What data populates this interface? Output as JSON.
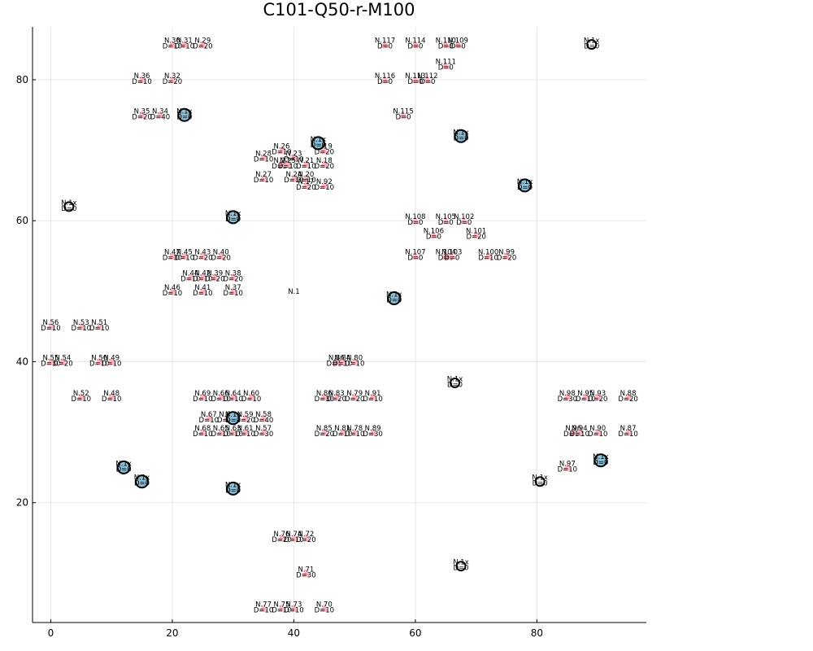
{
  "chart_data": {
    "type": "scatter",
    "title": "C101-Q50-r-M100",
    "xlabel": "",
    "ylabel": "",
    "xlim": [
      -3,
      98
    ],
    "ylim": [
      3,
      87.5
    ],
    "xticks": [
      0,
      20,
      40,
      60,
      80
    ],
    "yticks": [
      20,
      40,
      60,
      80
    ],
    "grid": true,
    "legend": "none",
    "colors": {
      "customer": "#ffb6c1",
      "facility_filled": "#8fbfd6",
      "facility_stroke": "#000000",
      "text": "#000000"
    },
    "facilities_filled": [
      {
        "label": "N.1x",
        "demand": "D=0",
        "x": 22,
        "y": 75
      },
      {
        "label": "N.1x",
        "demand": "D=0",
        "x": 44,
        "y": 71
      },
      {
        "label": "N.1x",
        "demand": "D=0",
        "x": 67.5,
        "y": 72
      },
      {
        "label": "N.1x",
        "demand": "D=0",
        "x": 78,
        "y": 65
      },
      {
        "label": "N.1x",
        "demand": "D=0",
        "x": 30,
        "y": 60.5
      },
      {
        "label": "N.1x",
        "demand": "D=0",
        "x": 56.5,
        "y": 49
      },
      {
        "label": "N.1x",
        "demand": "D=0",
        "x": 30,
        "y": 32
      },
      {
        "label": "N.1x",
        "demand": "D=0",
        "x": 12,
        "y": 25
      },
      {
        "label": "N.1x",
        "demand": "D=0",
        "x": 15,
        "y": 23
      },
      {
        "label": "N.1x",
        "demand": "D=0",
        "x": 30,
        "y": 22
      },
      {
        "label": "N.1x",
        "demand": "D=0",
        "x": 90.5,
        "y": 26
      }
    ],
    "facilities_open": [
      {
        "label": "N.1x",
        "demand": "D=0",
        "x": 89,
        "y": 85
      },
      {
        "label": "N.1x",
        "demand": "D=0",
        "x": 3,
        "y": 62
      },
      {
        "label": "N.1x",
        "demand": "D=0",
        "x": 66.5,
        "y": 37
      },
      {
        "label": "N.1x",
        "demand": "D=0",
        "x": 80.5,
        "y": 23
      },
      {
        "label": "N.1x",
        "demand": "D=0",
        "x": 67.5,
        "y": 11
      }
    ],
    "depot": {
      "label": "N.1",
      "x": 40,
      "y": 50
    },
    "customers": [
      {
        "label": "N.30",
        "demand": "D=10",
        "x": 20,
        "y": 85
      },
      {
        "label": "N.31",
        "demand": "D=10",
        "x": 22,
        "y": 85
      },
      {
        "label": "N.29",
        "demand": "D=20",
        "x": 25,
        "y": 85
      },
      {
        "label": "N.36",
        "demand": "D=10",
        "x": 15,
        "y": 80
      },
      {
        "label": "N.32",
        "demand": "D=20",
        "x": 20,
        "y": 80
      },
      {
        "label": "N.35",
        "demand": "D=20",
        "x": 15,
        "y": 75
      },
      {
        "label": "N.34",
        "demand": "D=40",
        "x": 18,
        "y": 75
      },
      {
        "label": "N.26",
        "demand": "D=10",
        "x": 38,
        "y": 70
      },
      {
        "label": "N.19",
        "demand": "D=20",
        "x": 45,
        "y": 70
      },
      {
        "label": "N.23",
        "demand": "D=10",
        "x": 40,
        "y": 69
      },
      {
        "label": "N.28",
        "demand": "D=10",
        "x": 35,
        "y": 69
      },
      {
        "label": "N.22",
        "demand": "D=20",
        "x": 38,
        "y": 68
      },
      {
        "label": "N.25",
        "demand": "D=10",
        "x": 39,
        "y": 68
      },
      {
        "label": "N.21",
        "demand": "D=10",
        "x": 42,
        "y": 68
      },
      {
        "label": "N.18",
        "demand": "D=20",
        "x": 45,
        "y": 68
      },
      {
        "label": "N.27",
        "demand": "D=10",
        "x": 35,
        "y": 66
      },
      {
        "label": "N.24",
        "demand": "D=10",
        "x": 40,
        "y": 66
      },
      {
        "label": "N.20",
        "demand": "D=10",
        "x": 42,
        "y": 66
      },
      {
        "label": "N.17",
        "demand": "D=20",
        "x": 42,
        "y": 65
      },
      {
        "label": "N.92",
        "demand": "D=10",
        "x": 45,
        "y": 65
      },
      {
        "label": "N.117",
        "demand": "D=0",
        "x": 55,
        "y": 85
      },
      {
        "label": "N.114",
        "demand": "D=0",
        "x": 60,
        "y": 85
      },
      {
        "label": "N.110",
        "demand": "D=0",
        "x": 65,
        "y": 85
      },
      {
        "label": "N.109",
        "demand": "D=0",
        "x": 67,
        "y": 85
      },
      {
        "label": "N.111",
        "demand": "D=0",
        "x": 65,
        "y": 82
      },
      {
        "label": "N.116",
        "demand": "D=0",
        "x": 55,
        "y": 80
      },
      {
        "label": "N.113",
        "demand": "D=0",
        "x": 60,
        "y": 80
      },
      {
        "label": "N.112",
        "demand": "D=0",
        "x": 62,
        "y": 80
      },
      {
        "label": "N.115",
        "demand": "D=0",
        "x": 58,
        "y": 75
      },
      {
        "label": "N.108",
        "demand": "D=0",
        "x": 60,
        "y": 60
      },
      {
        "label": "N.105",
        "demand": "D=0",
        "x": 65,
        "y": 60
      },
      {
        "label": "N.102",
        "demand": "D=0",
        "x": 68,
        "y": 60
      },
      {
        "label": "N.106",
        "demand": "D=0",
        "x": 63,
        "y": 58
      },
      {
        "label": "N.101",
        "demand": "D=20",
        "x": 70,
        "y": 58
      },
      {
        "label": "N.107",
        "demand": "D=0",
        "x": 60,
        "y": 55
      },
      {
        "label": "N.104",
        "demand": "D=0",
        "x": 65,
        "y": 55
      },
      {
        "label": "N.103",
        "demand": "D=0",
        "x": 66,
        "y": 55
      },
      {
        "label": "N.100",
        "demand": "D=10",
        "x": 72,
        "y": 55
      },
      {
        "label": "N.99",
        "demand": "D=20",
        "x": 75,
        "y": 55
      },
      {
        "label": "N.47",
        "demand": "D=30",
        "x": 20,
        "y": 55
      },
      {
        "label": "N.45",
        "demand": "D=10",
        "x": 22,
        "y": 55
      },
      {
        "label": "N.43",
        "demand": "D=20",
        "x": 25,
        "y": 55
      },
      {
        "label": "N.40",
        "demand": "D=20",
        "x": 28,
        "y": 55
      },
      {
        "label": "N.44",
        "demand": "D=10",
        "x": 23,
        "y": 52
      },
      {
        "label": "N.42",
        "demand": "D=10",
        "x": 25,
        "y": 52
      },
      {
        "label": "N.39",
        "demand": "D=20",
        "x": 27,
        "y": 52
      },
      {
        "label": "N.38",
        "demand": "D=20",
        "x": 30,
        "y": 52
      },
      {
        "label": "N.46",
        "demand": "D=10",
        "x": 20,
        "y": 50
      },
      {
        "label": "N.41",
        "demand": "D=10",
        "x": 25,
        "y": 50
      },
      {
        "label": "N.37",
        "demand": "D=10",
        "x": 30,
        "y": 50
      },
      {
        "label": "N.56",
        "demand": "D=10",
        "x": 0,
        "y": 45
      },
      {
        "label": "N.53",
        "demand": "D=10",
        "x": 5,
        "y": 45
      },
      {
        "label": "N.51",
        "demand": "D=10",
        "x": 8,
        "y": 45
      },
      {
        "label": "N.55",
        "demand": "D=30",
        "x": 0,
        "y": 40
      },
      {
        "label": "N.54",
        "demand": "D=20",
        "x": 2,
        "y": 40
      },
      {
        "label": "N.50",
        "demand": "D=10",
        "x": 8,
        "y": 40
      },
      {
        "label": "N.49",
        "demand": "D=10",
        "x": 10,
        "y": 40
      },
      {
        "label": "N.86",
        "demand": "D=10",
        "x": 47,
        "y": 40
      },
      {
        "label": "N.84",
        "demand": "D=10",
        "x": 48,
        "y": 40
      },
      {
        "label": "N.80",
        "demand": "D=10",
        "x": 50,
        "y": 40
      },
      {
        "label": "N.52",
        "demand": "D=10",
        "x": 5,
        "y": 35
      },
      {
        "label": "N.48",
        "demand": "D=10",
        "x": 10,
        "y": 35
      },
      {
        "label": "N.69",
        "demand": "D=10",
        "x": 25,
        "y": 35
      },
      {
        "label": "N.66",
        "demand": "D=10",
        "x": 28,
        "y": 35
      },
      {
        "label": "N.64",
        "demand": "D=10",
        "x": 30,
        "y": 35
      },
      {
        "label": "N.60",
        "demand": "D=10",
        "x": 33,
        "y": 35
      },
      {
        "label": "N.86",
        "demand": "D=30",
        "x": 45,
        "y": 35
      },
      {
        "label": "N.83",
        "demand": "D=20",
        "x": 47,
        "y": 35
      },
      {
        "label": "N.79",
        "demand": "D=20",
        "x": 50,
        "y": 35
      },
      {
        "label": "N.91",
        "demand": "D=10",
        "x": 53,
        "y": 35
      },
      {
        "label": "N.98",
        "demand": "D=30",
        "x": 85,
        "y": 35
      },
      {
        "label": "N.95",
        "demand": "D=10",
        "x": 88,
        "y": 35
      },
      {
        "label": "N.93",
        "demand": "D=20",
        "x": 90,
        "y": 35
      },
      {
        "label": "N.88",
        "demand": "D=20",
        "x": 95,
        "y": 35
      },
      {
        "label": "N.67",
        "demand": "D=10",
        "x": 26,
        "y": 32
      },
      {
        "label": "N.62",
        "demand": "D=20",
        "x": 29,
        "y": 32
      },
      {
        "label": "N.59",
        "demand": "D=20",
        "x": 32,
        "y": 32
      },
      {
        "label": "N.58",
        "demand": "D=40",
        "x": 35,
        "y": 32
      },
      {
        "label": "N.68",
        "demand": "D=10",
        "x": 25,
        "y": 30
      },
      {
        "label": "N.65",
        "demand": "D=10",
        "x": 28,
        "y": 30
      },
      {
        "label": "N.63",
        "demand": "D=10",
        "x": 30,
        "y": 30
      },
      {
        "label": "N.61",
        "demand": "D=10",
        "x": 32,
        "y": 30
      },
      {
        "label": "N.57",
        "demand": "D=30",
        "x": 35,
        "y": 30
      },
      {
        "label": "N.85",
        "demand": "D=20",
        "x": 45,
        "y": 30
      },
      {
        "label": "N.81",
        "demand": "D=10",
        "x": 48,
        "y": 30
      },
      {
        "label": "N.78",
        "demand": "D=10",
        "x": 50,
        "y": 30
      },
      {
        "label": "N.89",
        "demand": "D=30",
        "x": 53,
        "y": 30
      },
      {
        "label": "N.96",
        "demand": "D=10",
        "x": 86,
        "y": 30
      },
      {
        "label": "N.94",
        "demand": "D=10",
        "x": 87,
        "y": 30
      },
      {
        "label": "N.90",
        "demand": "D=10",
        "x": 90,
        "y": 30
      },
      {
        "label": "N.87",
        "demand": "D=10",
        "x": 95,
        "y": 30
      },
      {
        "label": "N.97",
        "demand": "D=10",
        "x": 85,
        "y": 25
      },
      {
        "label": "N.76",
        "demand": "D=20",
        "x": 38,
        "y": 15
      },
      {
        "label": "N.74",
        "demand": "D=10",
        "x": 40,
        "y": 15
      },
      {
        "label": "N.72",
        "demand": "D=20",
        "x": 42,
        "y": 15
      },
      {
        "label": "N.71",
        "demand": "D=30",
        "x": 42,
        "y": 10
      },
      {
        "label": "N.77",
        "demand": "D=10",
        "x": 35,
        "y": 5
      },
      {
        "label": "N.75",
        "demand": "D=10",
        "x": 38,
        "y": 5
      },
      {
        "label": "N.73",
        "demand": "D=10",
        "x": 40,
        "y": 5
      },
      {
        "label": "N.70",
        "demand": "D=10",
        "x": 45,
        "y": 5
      }
    ]
  }
}
